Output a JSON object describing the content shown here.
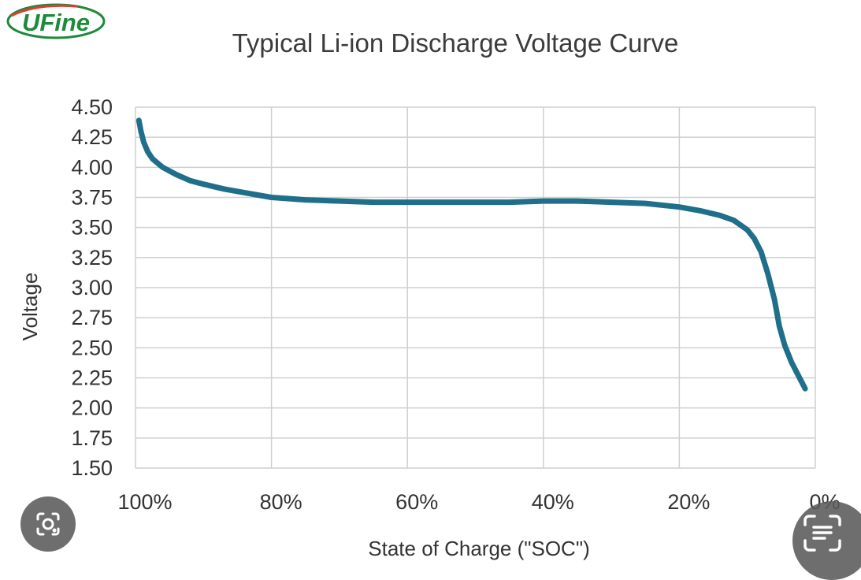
{
  "logo": {
    "text": "UFine",
    "color": "#1e8a3c"
  },
  "chart_data": {
    "type": "line",
    "title": "Typical Li-ion Discharge Voltage Curve",
    "xlabel": "State of Charge (\"SOC\")",
    "ylabel": "Voltage",
    "x_reversed": true,
    "xlim": [
      0,
      100
    ],
    "ylim": [
      1.5,
      4.5
    ],
    "x_ticks": [
      100,
      80,
      60,
      40,
      20,
      0
    ],
    "x_tick_labels": [
      "100%",
      "80%",
      "60%",
      "40%",
      "20%",
      "0%"
    ],
    "y_ticks": [
      4.5,
      4.25,
      4.0,
      3.75,
      3.5,
      3.25,
      3.0,
      2.75,
      2.5,
      2.25,
      2.0,
      1.75,
      1.5
    ],
    "y_tick_labels": [
      "4.50",
      "4.25",
      "4.00",
      "3.75",
      "3.50",
      "3.25",
      "3.00",
      "2.75",
      "2.50",
      "2.25",
      "2.00",
      "1.75",
      "1.50"
    ],
    "grid": true,
    "line_color": "#1f6f8b",
    "series": [
      {
        "points": [
          [
            99.5,
            4.39
          ],
          [
            99.2,
            4.3
          ],
          [
            98.8,
            4.21
          ],
          [
            98.2,
            4.13
          ],
          [
            97.5,
            4.07
          ],
          [
            96,
            4.0
          ],
          [
            94,
            3.94
          ],
          [
            92,
            3.89
          ],
          [
            90,
            3.86
          ],
          [
            87,
            3.82
          ],
          [
            84,
            3.79
          ],
          [
            80,
            3.75
          ],
          [
            75,
            3.73
          ],
          [
            70,
            3.72
          ],
          [
            65,
            3.71
          ],
          [
            60,
            3.71
          ],
          [
            55,
            3.71
          ],
          [
            50,
            3.71
          ],
          [
            45,
            3.71
          ],
          [
            40,
            3.72
          ],
          [
            35,
            3.72
          ],
          [
            30,
            3.71
          ],
          [
            25,
            3.7
          ],
          [
            20,
            3.67
          ],
          [
            17,
            3.64
          ],
          [
            14,
            3.6
          ],
          [
            12,
            3.56
          ],
          [
            10,
            3.48
          ],
          [
            9,
            3.41
          ],
          [
            8,
            3.3
          ],
          [
            7,
            3.12
          ],
          [
            6,
            2.9
          ],
          [
            5.3,
            2.68
          ],
          [
            4.5,
            2.52
          ],
          [
            3.5,
            2.38
          ],
          [
            2.5,
            2.27
          ],
          [
            1.5,
            2.16
          ]
        ]
      }
    ]
  },
  "overlay": {
    "lens_icon": "camera-lens-icon",
    "text_icon": "text-scan-icon"
  }
}
